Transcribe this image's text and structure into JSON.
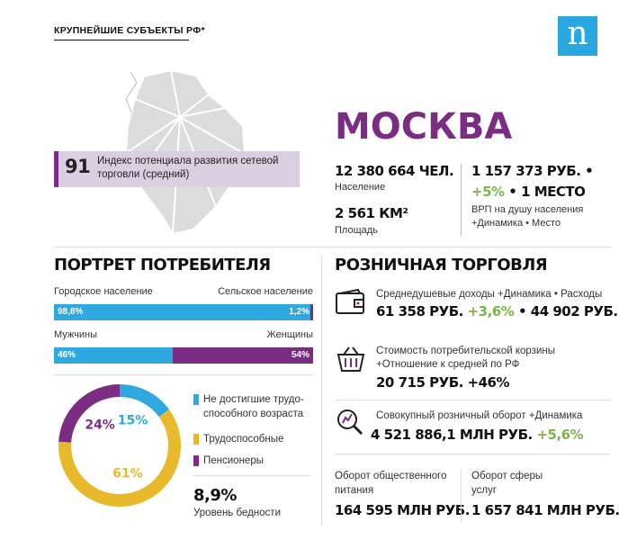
{
  "header": {
    "label": "КРУПНЕЙШИЕ СУБЪЕКТЫ РФ*",
    "logo_letter": "n"
  },
  "index": {
    "value": "91",
    "label": "Индекс потенциала развития сетевой торговли (средний)"
  },
  "city": "МОСКВА",
  "stats": {
    "population_value": "12 380 664 ЧЕЛ.",
    "population_label": "Население",
    "area_value": "2 561 КМ²",
    "area_label": "Площадь",
    "grp_value_1": "1 157 373 РУБ. •",
    "grp_growth": "+5%",
    "grp_place": "• 1 МЕСТО",
    "grp_label_1": "ВРП на душу населения",
    "grp_label_2": "+Динамика • Место"
  },
  "portrait": {
    "title": "ПОРТРЕТ ПОТРЕБИТЕЛЯ",
    "urban_label": "Городское население",
    "rural_label": "Сельское население",
    "urban_pct": "98,8%",
    "rural_pct": "1,2%",
    "urban_share": 0.988,
    "male_label": "Мужчины",
    "female_label": "Женщины",
    "male_pct": "46%",
    "female_pct": "54%",
    "male_share": 0.46
  },
  "age": {
    "legend": [
      {
        "label": "Не достигшие трудо-",
        "label2": "способного возраста",
        "color": "#2fa8e0"
      },
      {
        "label": "Трудоспособные",
        "color": "#e8b92a"
      },
      {
        "label": "Пенсионеры",
        "color": "#7b2d83"
      }
    ],
    "poverty_value": "8,9%",
    "poverty_label": "Уровень бедности"
  },
  "chart_data": {
    "type": "pie",
    "categories": [
      "Не достигшие трудоспособного возраста",
      "Трудоспособные",
      "Пенсионеры"
    ],
    "values": [
      15,
      61,
      24
    ],
    "labels": [
      "15%",
      "61%",
      "24%"
    ],
    "colors": [
      "#2fa8e0",
      "#e8b92a",
      "#7b2d83"
    ]
  },
  "retail": {
    "title": "РОЗНИЧНАЯ ТОРГОВЛЯ",
    "income_label": "Среднедушевые доходы +Динамика • Расходы",
    "income_value": "61 358 РУБ.",
    "income_growth": "+3,6%",
    "income_spend": "• 44 902 РУБ.",
    "basket_label_1": "Стоимость потребительской корзины",
    "basket_label_2": "+Отношение к средней по РФ",
    "basket_value": "20 715 РУБ. +46%",
    "turnover_label": "Совокупный розничный оборот +Динамика",
    "turnover_value": "4 521 886,1 МЛН РУБ.",
    "turnover_growth": "+5,6%",
    "catering_label_1": "Оборот общественного",
    "catering_label_2": "питания",
    "catering_value": "164 595 МЛН РУБ.",
    "services_label_1": "Оборот сферы",
    "services_label_2": "услуг",
    "services_value": "1 657 841 МЛН РУБ."
  }
}
